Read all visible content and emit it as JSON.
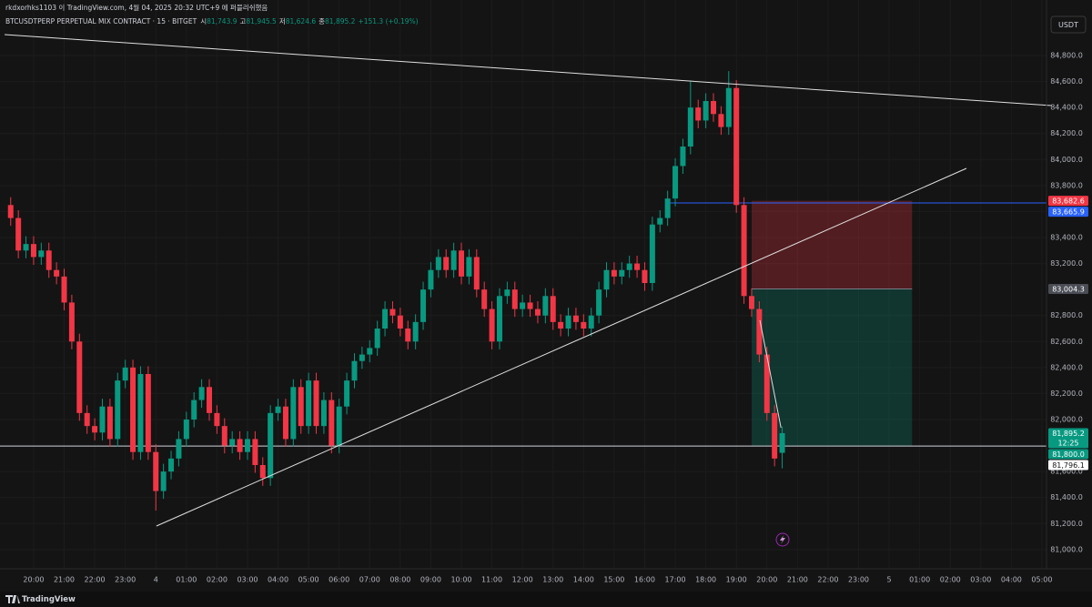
{
  "header": {
    "publisher": "rkdxorhks1103 이 TradingView.com, 4월 04, 2025 20:32 UTC+9 에 퍼블리쉬했음"
  },
  "chart_data": {
    "type": "candlestick",
    "legend": {
      "symbol": "BTCUSDTPERP PERPETUAL MIX CONTRACT · 15 · BITGET",
      "o_label": "시",
      "o": "81,743.9",
      "h_label": "고",
      "h": "81,945.5",
      "l_label": "저",
      "l": "81,624.6",
      "c_label": "종",
      "c": "81,895.2",
      "change": "+151.3 (+0.19%)"
    },
    "currency": "USDT",
    "up_color": "#089981",
    "down_color": "#f23645",
    "x": [
      -0.75,
      -0.5,
      -0.25,
      0,
      0.25,
      0.5,
      0.75,
      1,
      1.25,
      1.5,
      1.75,
      2,
      2.25,
      2.5,
      2.75,
      3,
      3.25,
      3.5,
      3.75,
      4,
      4.25,
      4.5,
      4.75,
      5,
      5.25,
      5.5,
      5.75,
      6,
      6.25,
      6.5,
      6.75,
      7,
      7.25,
      7.5,
      7.75,
      8,
      8.25,
      8.5,
      8.75,
      9,
      9.25,
      9.5,
      9.75,
      10,
      10.25,
      10.5,
      10.75,
      11,
      11.25,
      11.5,
      11.75,
      12,
      12.25,
      12.5,
      12.75,
      13,
      13.25,
      13.5,
      13.75,
      14,
      14.25,
      14.5,
      14.75,
      15,
      15.25,
      15.5,
      15.75,
      16,
      16.25,
      16.5,
      16.75,
      17,
      17.25,
      17.5,
      17.75,
      18,
      18.25,
      18.5,
      18.75,
      19,
      19.25,
      19.5,
      19.75,
      20,
      20.25,
      20.5,
      20.75,
      21,
      21.25,
      21.5,
      21.75,
      22,
      22.25,
      22.5,
      22.75,
      23,
      23.25,
      23.5,
      23.75,
      24,
      24.25,
      24.5
    ],
    "open": [
      83650,
      83550,
      83300,
      83350,
      83250,
      83300,
      83150,
      83100,
      82900,
      82600,
      82050,
      81950,
      81900,
      82100,
      81850,
      82300,
      82400,
      81750,
      82350,
      81750,
      81450,
      81600,
      81700,
      81850,
      82000,
      82150,
      82250,
      82050,
      81950,
      81800,
      81850,
      81750,
      81850,
      81650,
      81550,
      82050,
      82100,
      81850,
      82250,
      81950,
      82300,
      81950,
      82150,
      81800,
      82100,
      82300,
      82450,
      82500,
      82550,
      82700,
      82850,
      82800,
      82700,
      82600,
      82750,
      83000,
      83150,
      83250,
      83150,
      83300,
      83100,
      83250,
      83000,
      82850,
      82600,
      82950,
      83000,
      82850,
      82900,
      82850,
      82800,
      82950,
      82750,
      82700,
      82800,
      82750,
      82700,
      82800,
      83000,
      83150,
      83100,
      83150,
      83200,
      83150,
      83050,
      83500,
      83550,
      83700,
      83950,
      84100,
      84400,
      84300,
      84450,
      84350,
      84250,
      84550,
      83650,
      82950,
      82850,
      82500,
      82050,
      81743.9
    ],
    "high": [
      83710,
      83610,
      83410,
      83410,
      83360,
      83360,
      83210,
      83160,
      82960,
      82660,
      82110,
      82010,
      82160,
      82160,
      82360,
      82460,
      82460,
      82410,
      82410,
      81810,
      81660,
      81760,
      81910,
      82060,
      82210,
      82310,
      82310,
      82110,
      82010,
      81910,
      81910,
      81910,
      81910,
      81710,
      82110,
      82160,
      82160,
      82310,
      82310,
      82360,
      82360,
      82210,
      82210,
      82160,
      82360,
      82510,
      82560,
      82610,
      82760,
      82910,
      82910,
      82860,
      82760,
      82810,
      83060,
      83210,
      83310,
      83310,
      83360,
      83360,
      83310,
      83310,
      83060,
      82910,
      83010,
      83060,
      83060,
      82960,
      82960,
      82910,
      83010,
      83010,
      82810,
      82860,
      82860,
      82810,
      82860,
      83060,
      83210,
      83210,
      83210,
      83260,
      83260,
      83210,
      83560,
      83610,
      83760,
      84010,
      84160,
      84600,
      84460,
      84510,
      84510,
      84410,
      84680,
      84610,
      83710,
      83010,
      82910,
      82560,
      82110,
      81945.5
    ],
    "low": [
      83490,
      83240,
      83240,
      83190,
      83190,
      83090,
      83040,
      82840,
      82540,
      81990,
      81890,
      81840,
      81840,
      81790,
      81790,
      82240,
      81690,
      81690,
      81690,
      81300,
      81390,
      81540,
      81640,
      81790,
      81940,
      82090,
      81990,
      81890,
      81740,
      81740,
      81690,
      81690,
      81590,
      81490,
      81490,
      81990,
      81790,
      81790,
      81890,
      81890,
      81890,
      81890,
      81740,
      81740,
      82040,
      82240,
      82390,
      82440,
      82490,
      82640,
      82740,
      82640,
      82540,
      82540,
      82690,
      82940,
      83090,
      83090,
      83090,
      83040,
      83040,
      82940,
      82790,
      82540,
      82540,
      82890,
      82790,
      82790,
      82790,
      82740,
      82740,
      82690,
      82640,
      82640,
      82690,
      82640,
      82640,
      82740,
      82940,
      83040,
      83040,
      83090,
      83090,
      82990,
      82990,
      83440,
      83490,
      83640,
      83890,
      84040,
      84240,
      84240,
      84290,
      84190,
      84190,
      83590,
      82890,
      82790,
      82440,
      81990,
      81640,
      81624.6
    ],
    "close": [
      83550,
      83300,
      83350,
      83250,
      83300,
      83150,
      83100,
      82900,
      82600,
      82050,
      81950,
      81900,
      82100,
      81850,
      82300,
      82400,
      81750,
      82350,
      81750,
      81450,
      81600,
      81700,
      81850,
      82000,
      82150,
      82250,
      82050,
      81950,
      81800,
      81850,
      81750,
      81850,
      81650,
      81550,
      82050,
      82100,
      81850,
      82250,
      81950,
      82300,
      81950,
      82150,
      81800,
      82100,
      82300,
      82450,
      82500,
      82550,
      82700,
      82850,
      82800,
      82700,
      82600,
      82750,
      83000,
      83150,
      83250,
      83150,
      83300,
      83100,
      83250,
      83000,
      82850,
      82600,
      82950,
      83000,
      82850,
      82900,
      82850,
      82800,
      82950,
      82750,
      82700,
      82800,
      82750,
      82700,
      82800,
      83000,
      83150,
      83100,
      83150,
      83200,
      83150,
      83050,
      83500,
      83550,
      83700,
      83950,
      84100,
      84400,
      84300,
      84450,
      84350,
      84250,
      84550,
      83650,
      82950,
      82850,
      82500,
      82050,
      81700,
      81895.2
    ],
    "xlim": [
      -1.1,
      33.15
    ],
    "xticks": [
      {
        "value": 0,
        "label": "20:00"
      },
      {
        "value": 1,
        "label": "21:00"
      },
      {
        "value": 2,
        "label": "22:00"
      },
      {
        "value": 3,
        "label": "23:00"
      },
      {
        "value": 4,
        "label": "4"
      },
      {
        "value": 5,
        "label": "01:00"
      },
      {
        "value": 6,
        "label": "02:00"
      },
      {
        "value": 7,
        "label": "03:00"
      },
      {
        "value": 8,
        "label": "04:00"
      },
      {
        "value": 9,
        "label": "05:00"
      },
      {
        "value": 10,
        "label": "06:00"
      },
      {
        "value": 11,
        "label": "07:00"
      },
      {
        "value": 12,
        "label": "08:00"
      },
      {
        "value": 13,
        "label": "09:00"
      },
      {
        "value": 14,
        "label": "10:00"
      },
      {
        "value": 15,
        "label": "11:00"
      },
      {
        "value": 16,
        "label": "12:00"
      },
      {
        "value": 17,
        "label": "13:00"
      },
      {
        "value": 18,
        "label": "14:00"
      },
      {
        "value": 19,
        "label": "15:00"
      },
      {
        "value": 20,
        "label": "16:00"
      },
      {
        "value": 21,
        "label": "17:00"
      },
      {
        "value": 22,
        "label": "18:00"
      },
      {
        "value": 23,
        "label": "19:00"
      },
      {
        "value": 24,
        "label": "20:00"
      },
      {
        "value": 25,
        "label": "21:00"
      },
      {
        "value": 26,
        "label": "22:00"
      },
      {
        "value": 27,
        "label": "23:00"
      },
      {
        "value": 28,
        "label": "5"
      },
      {
        "value": 29,
        "label": "01:00"
      },
      {
        "value": 30,
        "label": "02:00"
      },
      {
        "value": 31,
        "label": "03:00"
      },
      {
        "value": 32,
        "label": "04:00"
      },
      {
        "value": 33,
        "label": "05:00"
      }
    ],
    "ylim": [
      80852,
      85227
    ],
    "yticks": [
      {
        "value": 84800,
        "label": "84,800.0"
      },
      {
        "value": 84600,
        "label": "84,600.0"
      },
      {
        "value": 84400,
        "label": "84,400.0"
      },
      {
        "value": 84200,
        "label": "84,200.0"
      },
      {
        "value": 84000,
        "label": "84,000.0"
      },
      {
        "value": 83800,
        "label": "83,800.0"
      },
      {
        "value": 83600,
        "label": "83,600.0"
      },
      {
        "value": 83400,
        "label": "83,400.0"
      },
      {
        "value": 83200,
        "label": "83,200.0"
      },
      {
        "value": 82800,
        "label": "82,800.0"
      },
      {
        "value": 82600,
        "label": "82,600.0"
      },
      {
        "value": 82400,
        "label": "82,400.0"
      },
      {
        "value": 82200,
        "label": "82,200.0"
      },
      {
        "value": 82000,
        "label": "82,000.0"
      },
      {
        "value": 81600,
        "label": "81,600.0"
      },
      {
        "value": 81400,
        "label": "81,400.0"
      },
      {
        "value": 81200,
        "label": "81,200.0"
      },
      {
        "value": 81000,
        "label": "81,000.0"
      }
    ],
    "grid": true,
    "trend_lines": [
      {
        "x": [
          -0.95,
          33.3
        ],
        "y": [
          84961,
          84415
        ]
      },
      {
        "x": [
          4.02,
          30.53
        ],
        "y": [
          81181,
          83932
        ]
      },
      {
        "x": [
          23.77,
          24.46
        ],
        "y": [
          82763,
          81937
        ]
      }
    ],
    "hlines": [
      {
        "value": 83665.9,
        "x_start": 20.8,
        "color": "#2962ff"
      },
      {
        "value": 81796.1,
        "color": "#d1d4dc"
      }
    ],
    "position": {
      "x": [
        23.5,
        28.75
      ],
      "stop": 83682.6,
      "entry": 83004.3,
      "target": 81800
    },
    "price_labels": [
      {
        "value": 83682.6,
        "label": "83,682.6",
        "color": "#f23645"
      },
      {
        "value": 83665.9,
        "label": "83,665.9",
        "color": "#2962ff"
      },
      {
        "value": 83004.3,
        "label": "83,004.3",
        "color": "#4a4d55"
      },
      {
        "value": 81895.2,
        "label": "81,895.2",
        "countdown": "12:25",
        "color": "#089981"
      },
      {
        "value": 81800,
        "label": "81,800.0",
        "color": "#089981"
      },
      {
        "value": 81796.1,
        "label": "81,796.1",
        "color": "#ffffff"
      }
    ]
  },
  "footer": {
    "brand": "TradingView"
  }
}
